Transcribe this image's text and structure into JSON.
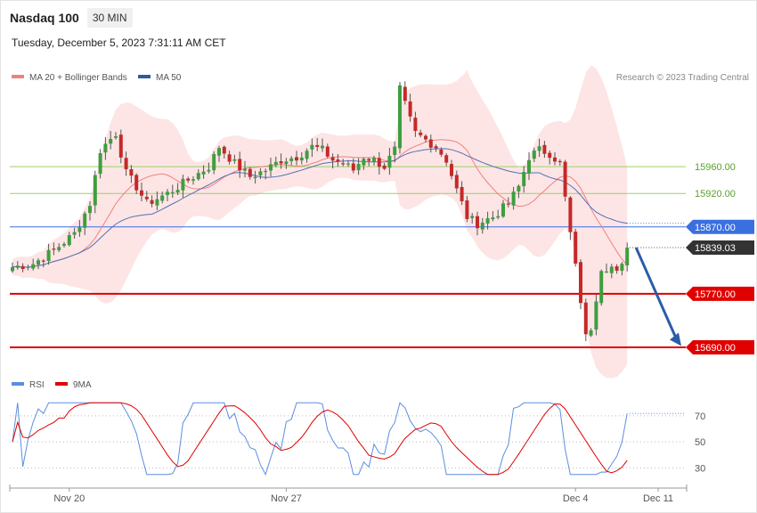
{
  "header": {
    "title": "Nasdaq 100",
    "timeframe": "30 MIN"
  },
  "timestamp": "Tuesday, December 5, 2023 7:31:11 AM CET",
  "colors": {
    "up": "#3f9e3f",
    "down": "#c62828",
    "band_fill": "#fde0e0",
    "ma20": "#f08080",
    "ma50": "#5470b8",
    "resistance": "#9bd16a",
    "pivot": "#3a6fe0",
    "support": "#e00000",
    "arrow": "#2a5da8",
    "rsi": "#5b8ee0",
    "rsi_ma": "#e00000"
  },
  "chart_data": [
    {
      "type": "candlestick",
      "legend": [
        {
          "label": "MA 20 + Bollinger Bands",
          "color": "#f08080"
        },
        {
          "label": "MA 50",
          "color": "#2f5aa0"
        }
      ],
      "source": "Research © 2023 Trading Central",
      "x_ticks": [
        {
          "label": "Nov 20",
          "index": 11
        },
        {
          "label": "Nov 27",
          "index": 53
        },
        {
          "label": "Dec 4",
          "index": 109
        },
        {
          "label": "Dec 11",
          "index": 125
        }
      ],
      "y_range": [
        15670,
        16080
      ],
      "last_price": "15839.03",
      "levels": [
        {
          "value": 15960,
          "label": "15960.00",
          "kind": "resistance"
        },
        {
          "value": 15920,
          "label": "15920.00",
          "kind": "resistance"
        },
        {
          "value": 15870,
          "label": "15870.00",
          "kind": "pivot"
        },
        {
          "value": 15770,
          "label": "15770.00",
          "kind": "support"
        },
        {
          "value": 15690,
          "label": "15690.00",
          "kind": "support"
        }
      ],
      "forecast_arrow": {
        "from": 15839,
        "to": 15692
      }
    },
    {
      "type": "line",
      "name": "RSI",
      "legend": [
        {
          "label": "RSI",
          "color": "#5b8ee0"
        },
        {
          "label": "9MA",
          "color": "#e00000"
        }
      ],
      "ylim": [
        20,
        85
      ],
      "ticks": [
        "70",
        "50",
        "30"
      ]
    }
  ]
}
